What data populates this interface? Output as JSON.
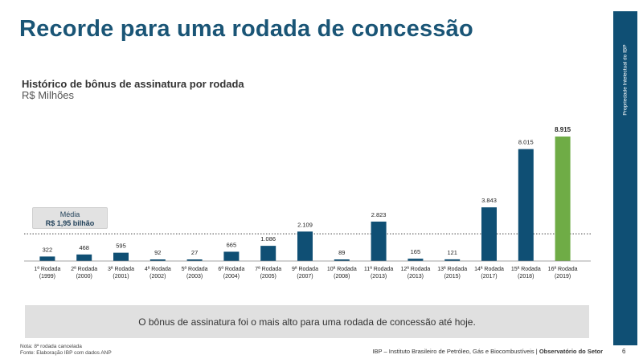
{
  "title": "Recorde para uma rodada de concessão",
  "subtitle": "Histórico de bônus de assinatura por rodada",
  "units": "R$ Milhões",
  "side_label": "Propriedade Intelectual do IBP",
  "average": {
    "label": "Média",
    "value_text": "R$ 1,95 bilhão"
  },
  "message": "O bônus de assinatura foi o mais alto para uma rodada de concessão até hoje.",
  "notes": [
    "Nota: 8ª rodada cancelada",
    "Fonte: Elaboração IBP com dados ANP"
  ],
  "footer": {
    "org": "IBP – Instituto Brasileiro de Petróleo, Gás e Biocombustíveis |",
    "section": "Observatório do Setor"
  },
  "page_number": "6",
  "colors": {
    "bar": "#0f4f74",
    "highlight": "#6fac46",
    "title": "#1a5576"
  },
  "chart_data": {
    "type": "bar",
    "title": "Histórico de bônus de assinatura por rodada",
    "ylabel": "R$ Milhões",
    "categories": [
      "1ª Rodada",
      "2ª Rodada",
      "3ª Rodada",
      "4ª Rodada",
      "5ª Rodada",
      "6ª Rodada",
      "7ª Rodada",
      "9ª Rodada",
      "10ª Rodada",
      "11ª Rodada",
      "12ª Rodada",
      "13ª Rodada",
      "14ª Rodada",
      "15ª Rodada",
      "16ª Rodada"
    ],
    "years": [
      "(1999)",
      "(2000)",
      "(2001)",
      "(2002)",
      "(2003)",
      "(2004)",
      "(2005)",
      "(2007)",
      "(2008)",
      "(2013)",
      "(2013)",
      "(2015)",
      "(2017)",
      "(2018)",
      "(2019)"
    ],
    "values": [
      322,
      468,
      595,
      92,
      27,
      665,
      1086,
      2109,
      89,
      2823,
      165,
      121,
      3843,
      8015,
      8915
    ],
    "labels": [
      "322",
      "468",
      "595",
      "92",
      "27",
      "665",
      "1.086",
      "2.109",
      "89",
      "2.823",
      "165",
      "121",
      "3.843",
      "8.015",
      "8.915"
    ],
    "highlight_index": 14,
    "average": 1950,
    "ylim": [
      0,
      8915
    ]
  }
}
